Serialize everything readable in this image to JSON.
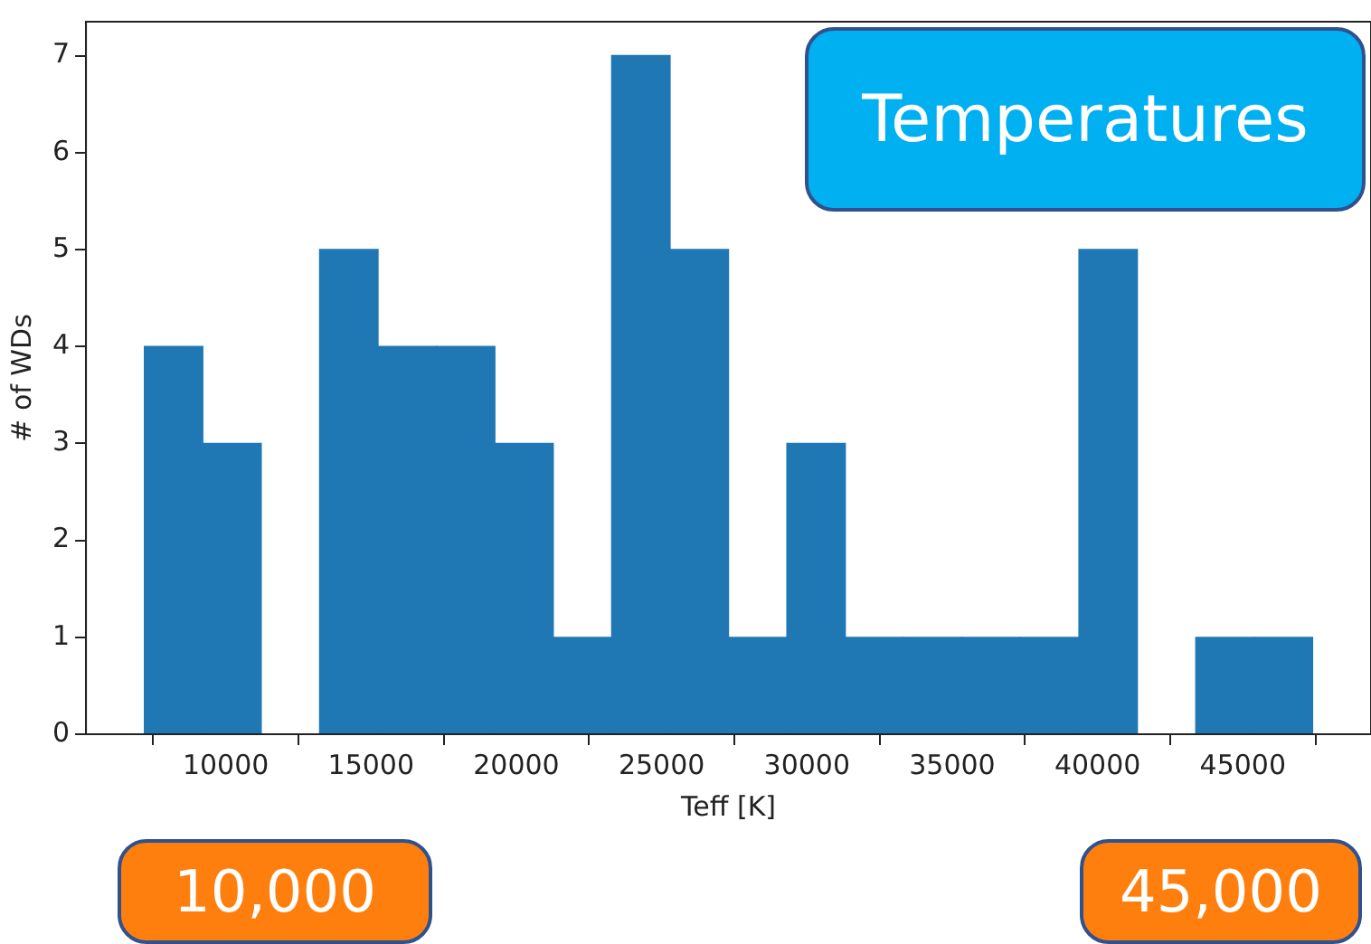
{
  "chart_data": {
    "type": "histogram",
    "xlabel": "Teff [K]",
    "ylabel": "# of WDs",
    "bins": [
      7200,
      9210,
      11220,
      13230,
      15240,
      17250,
      19260,
      21270,
      23280,
      25290,
      27300,
      29310,
      31320,
      33330,
      35340,
      37350,
      39360,
      41370,
      43380,
      45390,
      47400
    ],
    "values": [
      4,
      3,
      0,
      5,
      4,
      4,
      3,
      1,
      7,
      5,
      1,
      3,
      1,
      1,
      1,
      1,
      5,
      0,
      1,
      1
    ],
    "color": "#1f77b4",
    "xlim": [
      5190,
      49410
    ],
    "xticks": [
      10000,
      15000,
      20000,
      25000,
      30000,
      35000,
      40000,
      45000
    ],
    "ylim": [
      0,
      7.35
    ],
    "yticks": [
      0,
      1,
      2,
      3,
      4,
      5,
      6,
      7
    ],
    "grid": false,
    "annotations": [
      "Temperatures",
      "10,000",
      "45,000"
    ]
  }
}
